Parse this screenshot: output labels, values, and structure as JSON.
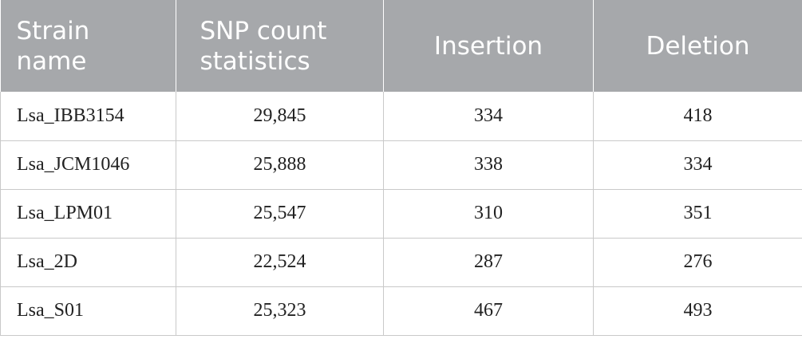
{
  "table": {
    "header": [
      "Strain name",
      "SNP count statistics",
      "Insertion",
      "Deletion"
    ],
    "rows": [
      [
        "Lsa_IBB3154",
        "29,845",
        "334",
        "418"
      ],
      [
        "Lsa_JCM1046",
        "25,888",
        "338",
        "334"
      ],
      [
        "Lsa_LPM01",
        "25,547",
        "310",
        "351"
      ],
      [
        "Lsa_2D",
        "22,524",
        "287",
        "276"
      ],
      [
        "Lsa_S01",
        "25,323",
        "467",
        "493"
      ]
    ]
  }
}
